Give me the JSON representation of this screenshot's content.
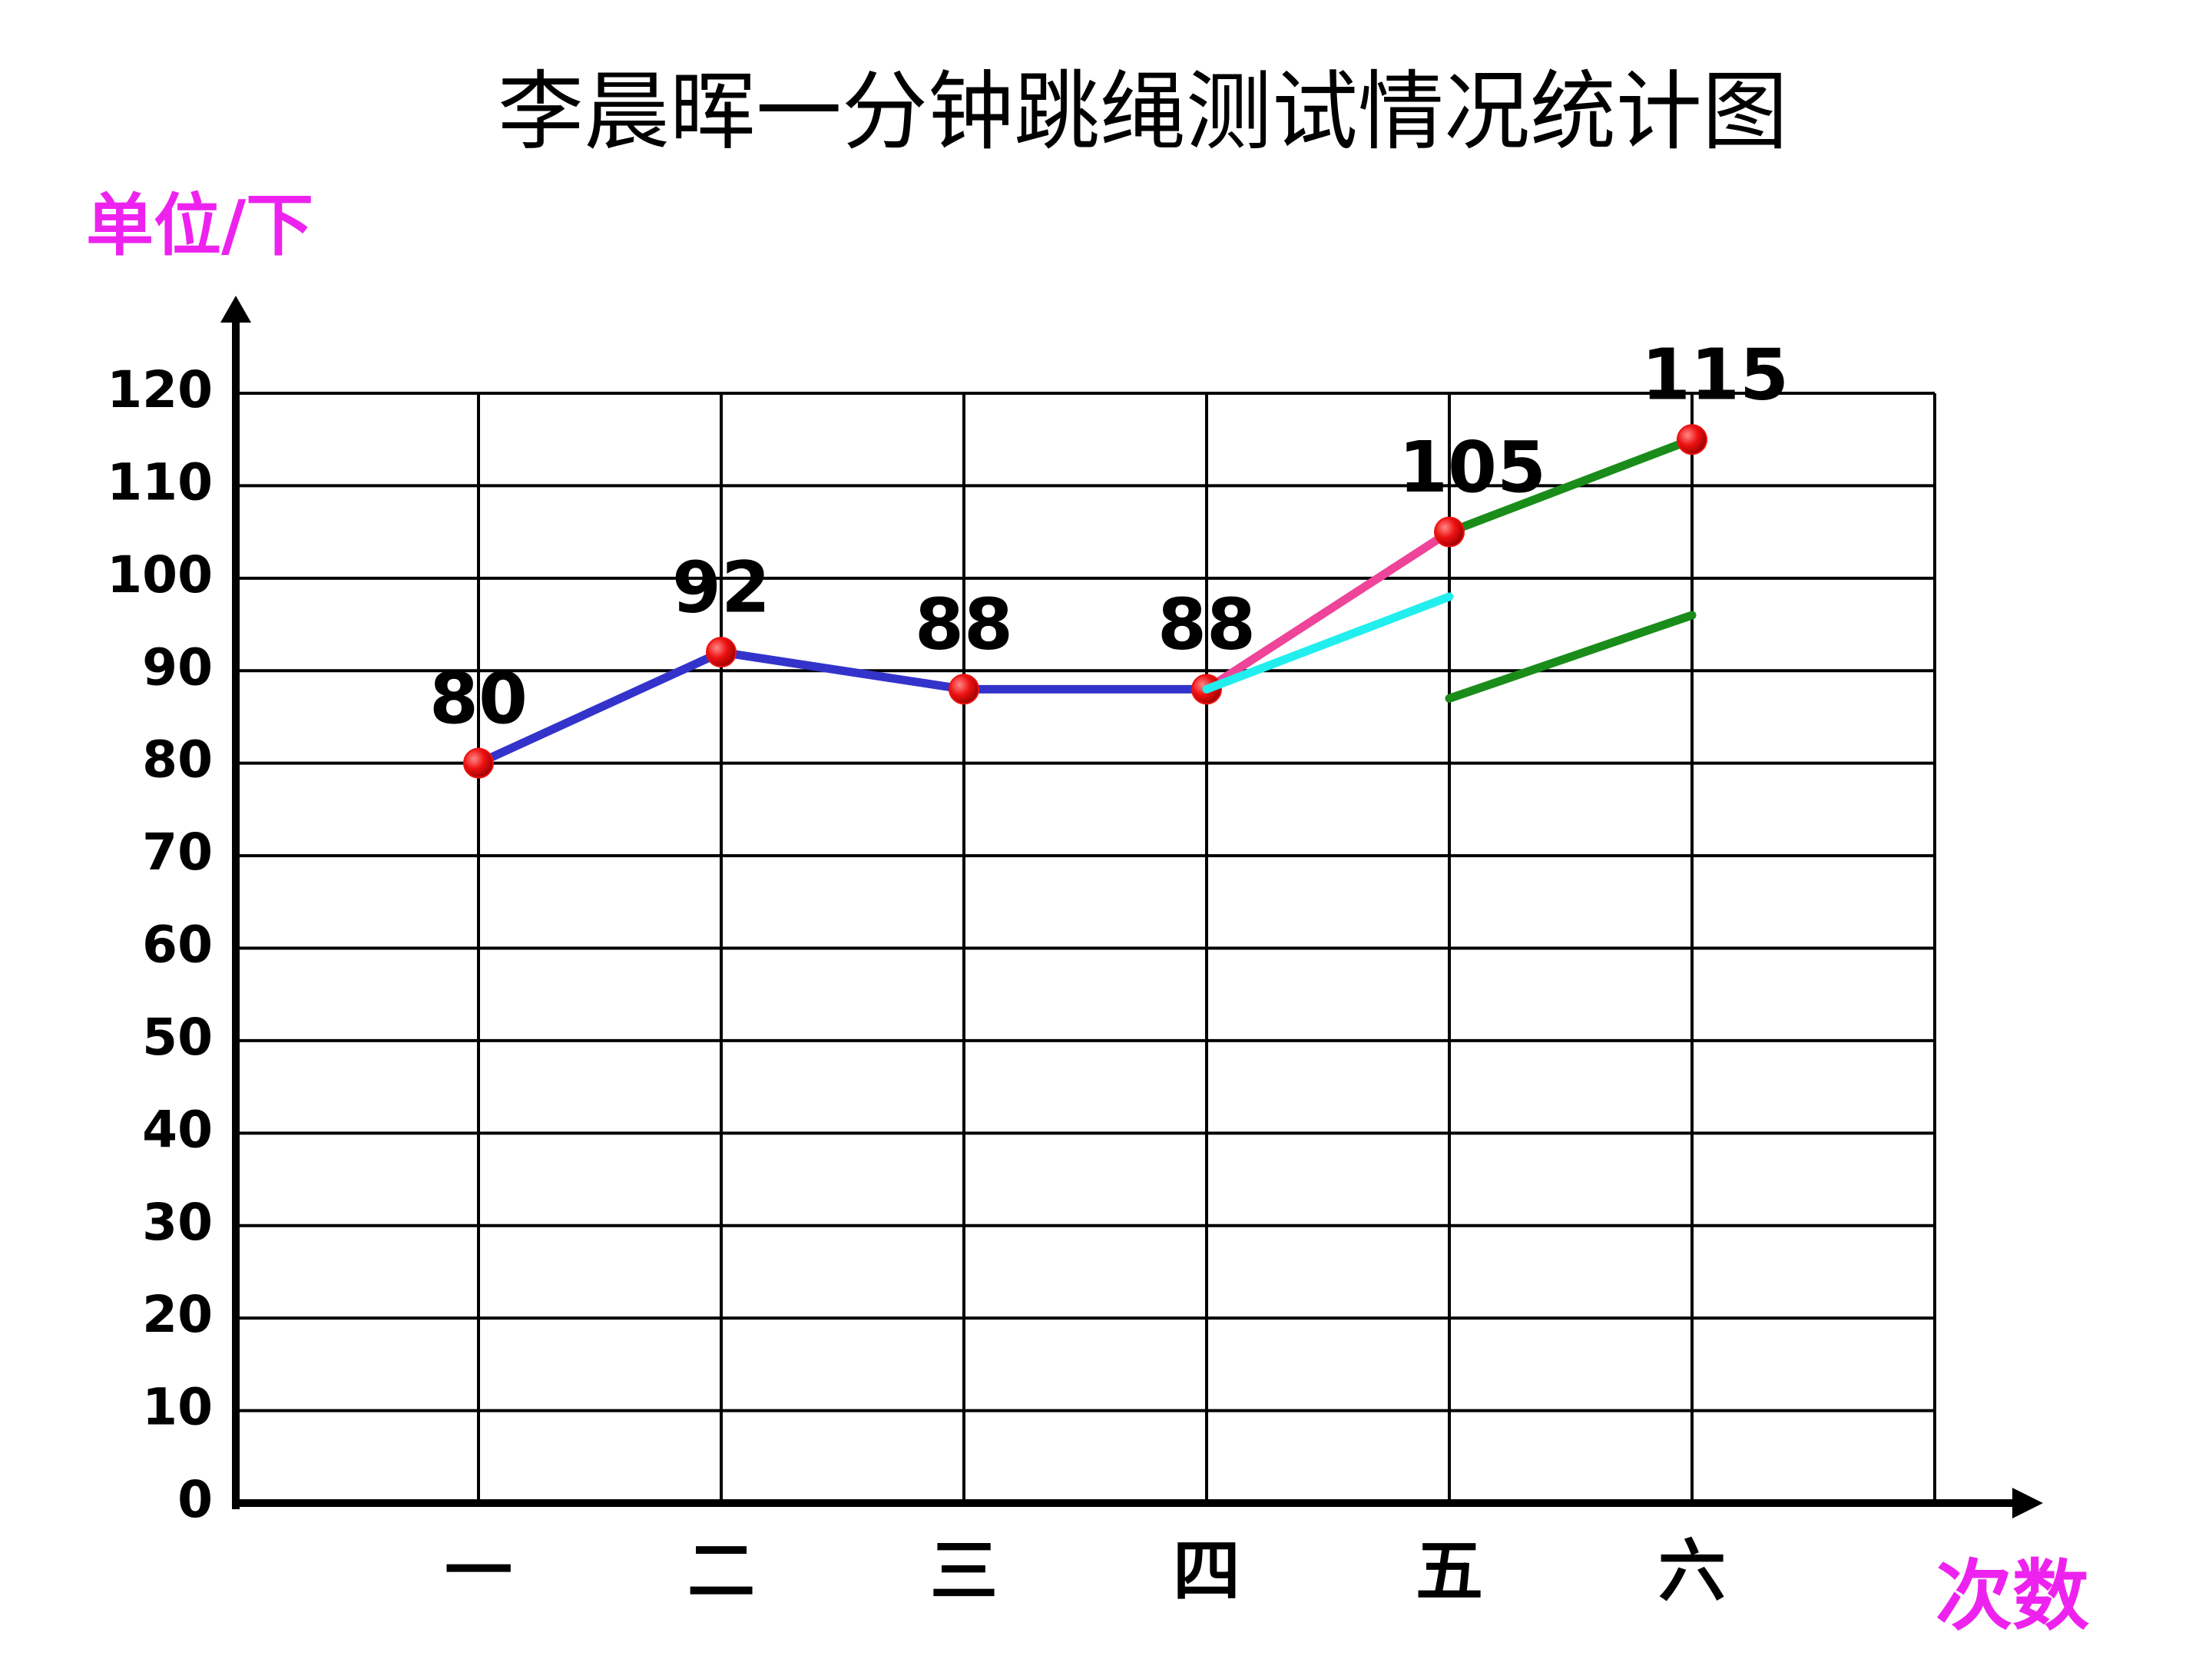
{
  "chart_data": {
    "type": "line",
    "title": "李晨晖一分钟跳绳测试情况统计图",
    "y_label": "单位/下",
    "x_label": "次数",
    "categories": [
      "一",
      "二",
      "三",
      "四",
      "五",
      "六"
    ],
    "series": [
      {
        "values": [
          80,
          92,
          88,
          88,
          105,
          115
        ],
        "color": "#3333cc",
        "segment_colors": [
          "#3333cc",
          "#3333cc",
          "#3333cc",
          "#ee4499",
          "#1a8c1a"
        ],
        "marker_color": "#ee1111",
        "data_labels": true
      },
      {
        "values": [
          null,
          null,
          null,
          88,
          98,
          null
        ],
        "color": "#22eeee"
      },
      {
        "values": [
          null,
          null,
          null,
          null,
          87,
          96
        ],
        "color": "#1a8c1a"
      }
    ],
    "ylim": [
      0,
      120
    ],
    "yticks": [
      0,
      10,
      20,
      30,
      40,
      50,
      60,
      70,
      80,
      90,
      100,
      110,
      120
    ],
    "grid": true
  }
}
